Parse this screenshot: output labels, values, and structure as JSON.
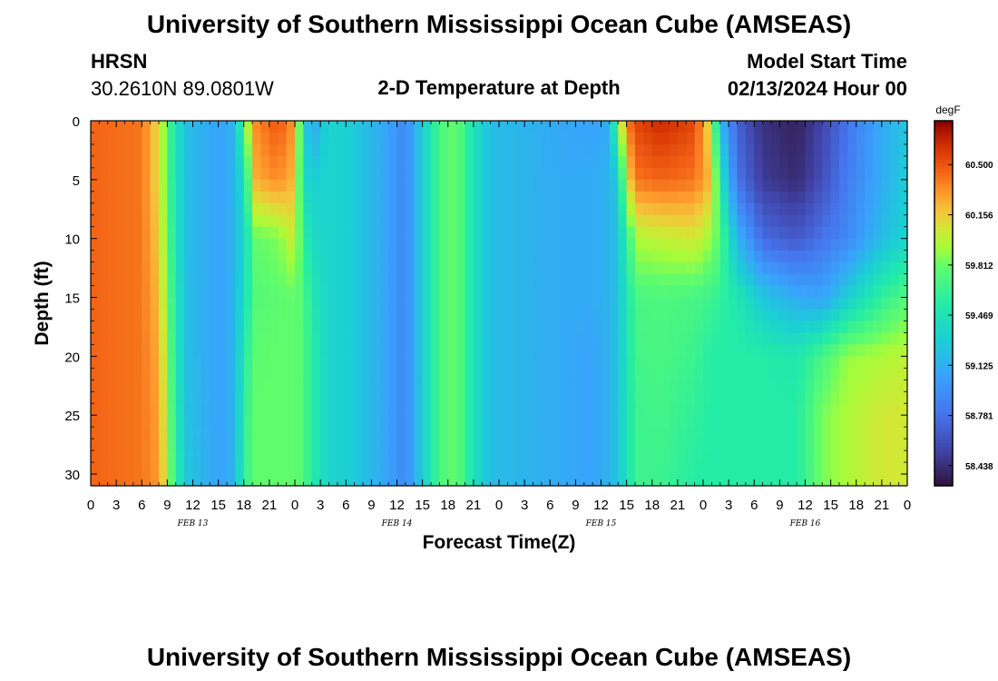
{
  "title": "University of Southern Mississippi Ocean Cube (AMSEAS)",
  "station": "HRSN",
  "coords": "30.2610N  89.0801W",
  "subtitle": "2-D Temperature at Depth",
  "model_start_label": "Model Start Time",
  "model_start_value": "02/13/2024 Hour 00",
  "footer_title": "University of Southern Mississippi Ocean Cube (AMSEAS)",
  "chart_data": {
    "type": "heatmap",
    "xlabel": "Forecast Time(Z)",
    "ylabel": "Depth (ft)",
    "x_ticks": [
      "0",
      "3",
      "6",
      "9",
      "12",
      "15",
      "18",
      "21",
      "0",
      "3",
      "6",
      "9",
      "12",
      "15",
      "18",
      "21",
      "0",
      "3",
      "6",
      "9",
      "12",
      "15",
      "18",
      "21",
      "0",
      "3",
      "6",
      "9",
      "12",
      "15",
      "18",
      "21",
      "0"
    ],
    "x_range_hours": [
      0,
      96
    ],
    "date_labels": [
      {
        "label": "FEB 13",
        "hour": 12
      },
      {
        "label": "FEB 14",
        "hour": 36
      },
      {
        "label": "FEB 15",
        "hour": 60
      },
      {
        "label": "FEB 16",
        "hour": 84
      }
    ],
    "y_ticks": [
      "0",
      "5",
      "10",
      "15",
      "20",
      "25",
      "30"
    ],
    "y_range": [
      0,
      31
    ],
    "y_reversed": true,
    "colorbar": {
      "unit": "degF",
      "range": [
        58.3,
        60.8
      ],
      "ticks": [
        "60.500",
        "60.156",
        "59.812",
        "59.469",
        "59.125",
        "58.781",
        "58.438"
      ]
    },
    "depths_ft": [
      0,
      5,
      10,
      15,
      20,
      25,
      31
    ],
    "columns": [
      {
        "hour": 0,
        "temps": [
          60.45,
          60.45,
          60.45,
          60.45,
          60.45,
          60.45,
          60.45
        ]
      },
      {
        "hour": 6,
        "temps": [
          60.4,
          60.4,
          60.4,
          60.4,
          60.4,
          60.4,
          60.4
        ]
      },
      {
        "hour": 8,
        "temps": [
          60.1,
          60.1,
          60.15,
          60.2,
          60.25,
          60.28,
          60.3
        ]
      },
      {
        "hour": 9,
        "temps": [
          59.75,
          59.75,
          59.8,
          59.85,
          59.9,
          59.95,
          60.0
        ]
      },
      {
        "hour": 10,
        "temps": [
          59.45,
          59.45,
          59.45,
          59.48,
          59.5,
          59.52,
          59.55
        ]
      },
      {
        "hour": 11.5,
        "temps": [
          59.2,
          59.2,
          59.2,
          59.2,
          59.2,
          59.22,
          59.25
        ]
      },
      {
        "hour": 15,
        "temps": [
          59.05,
          59.05,
          59.05,
          59.05,
          59.05,
          59.05,
          59.05
        ]
      },
      {
        "hour": 17,
        "temps": [
          59.15,
          59.15,
          59.15,
          59.15,
          59.15,
          59.15,
          59.15
        ]
      },
      {
        "hour": 18,
        "temps": [
          59.8,
          59.45,
          59.4,
          59.45,
          59.55,
          59.6,
          59.62
        ]
      },
      {
        "hour": 19.5,
        "temps": [
          60.35,
          60.25,
          59.8,
          59.75,
          59.78,
          59.8,
          59.8
        ]
      },
      {
        "hour": 22,
        "temps": [
          60.5,
          60.35,
          59.85,
          59.78,
          59.8,
          59.8,
          59.8
        ]
      },
      {
        "hour": 24,
        "temps": [
          60.3,
          60.2,
          60.05,
          59.8,
          59.8,
          59.8,
          59.8
        ]
      },
      {
        "hour": 25,
        "temps": [
          59.35,
          59.4,
          59.6,
          59.75,
          59.75,
          59.75,
          59.75
        ]
      },
      {
        "hour": 26,
        "temps": [
          59.05,
          59.3,
          59.4,
          59.5,
          59.55,
          59.55,
          59.55
        ]
      },
      {
        "hour": 28,
        "temps": [
          59.35,
          59.35,
          59.35,
          59.35,
          59.35,
          59.35,
          59.35
        ]
      },
      {
        "hour": 31,
        "temps": [
          59.28,
          59.28,
          59.28,
          59.28,
          59.28,
          59.28,
          59.28
        ]
      },
      {
        "hour": 35,
        "temps": [
          59.05,
          59.05,
          59.05,
          59.05,
          59.05,
          59.05,
          59.05
        ]
      },
      {
        "hour": 37,
        "temps": [
          58.9,
          58.9,
          58.9,
          58.9,
          58.9,
          58.9,
          58.9
        ]
      },
      {
        "hour": 39,
        "temps": [
          59.3,
          59.3,
          59.3,
          59.3,
          59.3,
          59.3,
          59.3
        ]
      },
      {
        "hour": 41,
        "temps": [
          59.7,
          59.7,
          59.7,
          59.7,
          59.7,
          59.7,
          59.7
        ]
      },
      {
        "hour": 43,
        "temps": [
          59.82,
          59.82,
          59.82,
          59.82,
          59.82,
          59.82,
          59.82
        ]
      },
      {
        "hour": 45,
        "temps": [
          59.45,
          59.45,
          59.45,
          59.45,
          59.45,
          59.45,
          59.45
        ]
      },
      {
        "hour": 47,
        "temps": [
          59.2,
          59.2,
          59.2,
          59.2,
          59.2,
          59.2,
          59.2
        ]
      },
      {
        "hour": 51,
        "temps": [
          59.15,
          59.15,
          59.15,
          59.15,
          59.15,
          59.15,
          59.15
        ]
      },
      {
        "hour": 55,
        "temps": [
          59.08,
          59.1,
          59.1,
          59.1,
          59.1,
          59.1,
          59.1
        ]
      },
      {
        "hour": 59,
        "temps": [
          59.05,
          59.1,
          59.1,
          59.1,
          59.05,
          59.05,
          59.05
        ]
      },
      {
        "hour": 61,
        "temps": [
          59.1,
          59.15,
          59.15,
          59.15,
          59.15,
          59.15,
          59.15
        ]
      },
      {
        "hour": 62,
        "temps": [
          59.85,
          59.3,
          59.25,
          59.25,
          59.25,
          59.25,
          59.25
        ]
      },
      {
        "hour": 63,
        "temps": [
          60.35,
          60.05,
          59.55,
          59.45,
          59.45,
          59.45,
          59.45
        ]
      },
      {
        "hour": 64,
        "temps": [
          60.55,
          60.4,
          59.95,
          59.7,
          59.68,
          59.65,
          59.65
        ]
      },
      {
        "hour": 67,
        "temps": [
          60.65,
          60.45,
          60.0,
          59.72,
          59.7,
          59.68,
          59.65
        ]
      },
      {
        "hour": 71,
        "temps": [
          60.55,
          60.4,
          60.05,
          59.7,
          59.65,
          59.6,
          59.55
        ]
      },
      {
        "hour": 73,
        "temps": [
          60.0,
          60.2,
          59.9,
          59.65,
          59.55,
          59.55,
          59.55
        ]
      },
      {
        "hour": 74,
        "temps": [
          59.2,
          59.5,
          59.75,
          59.6,
          59.55,
          59.55,
          59.55
        ]
      },
      {
        "hour": 76,
        "temps": [
          58.7,
          58.8,
          59.15,
          59.5,
          59.55,
          59.55,
          59.55
        ]
      },
      {
        "hour": 79,
        "temps": [
          58.45,
          58.5,
          58.75,
          59.25,
          59.55,
          59.55,
          59.55
        ]
      },
      {
        "hour": 83,
        "temps": [
          58.38,
          58.42,
          58.65,
          59.1,
          59.5,
          59.55,
          59.55
        ]
      },
      {
        "hour": 86,
        "temps": [
          58.55,
          58.6,
          58.8,
          59.05,
          59.7,
          59.85,
          59.85
        ]
      },
      {
        "hour": 89,
        "temps": [
          58.8,
          58.85,
          58.9,
          59.3,
          59.9,
          59.95,
          59.95
        ]
      },
      {
        "hour": 93,
        "temps": [
          59.1,
          59.1,
          59.2,
          59.6,
          59.95,
          60.05,
          60.05
        ]
      },
      {
        "hour": 96,
        "temps": [
          59.25,
          59.3,
          59.35,
          59.75,
          60.0,
          60.05,
          60.05
        ]
      }
    ]
  }
}
